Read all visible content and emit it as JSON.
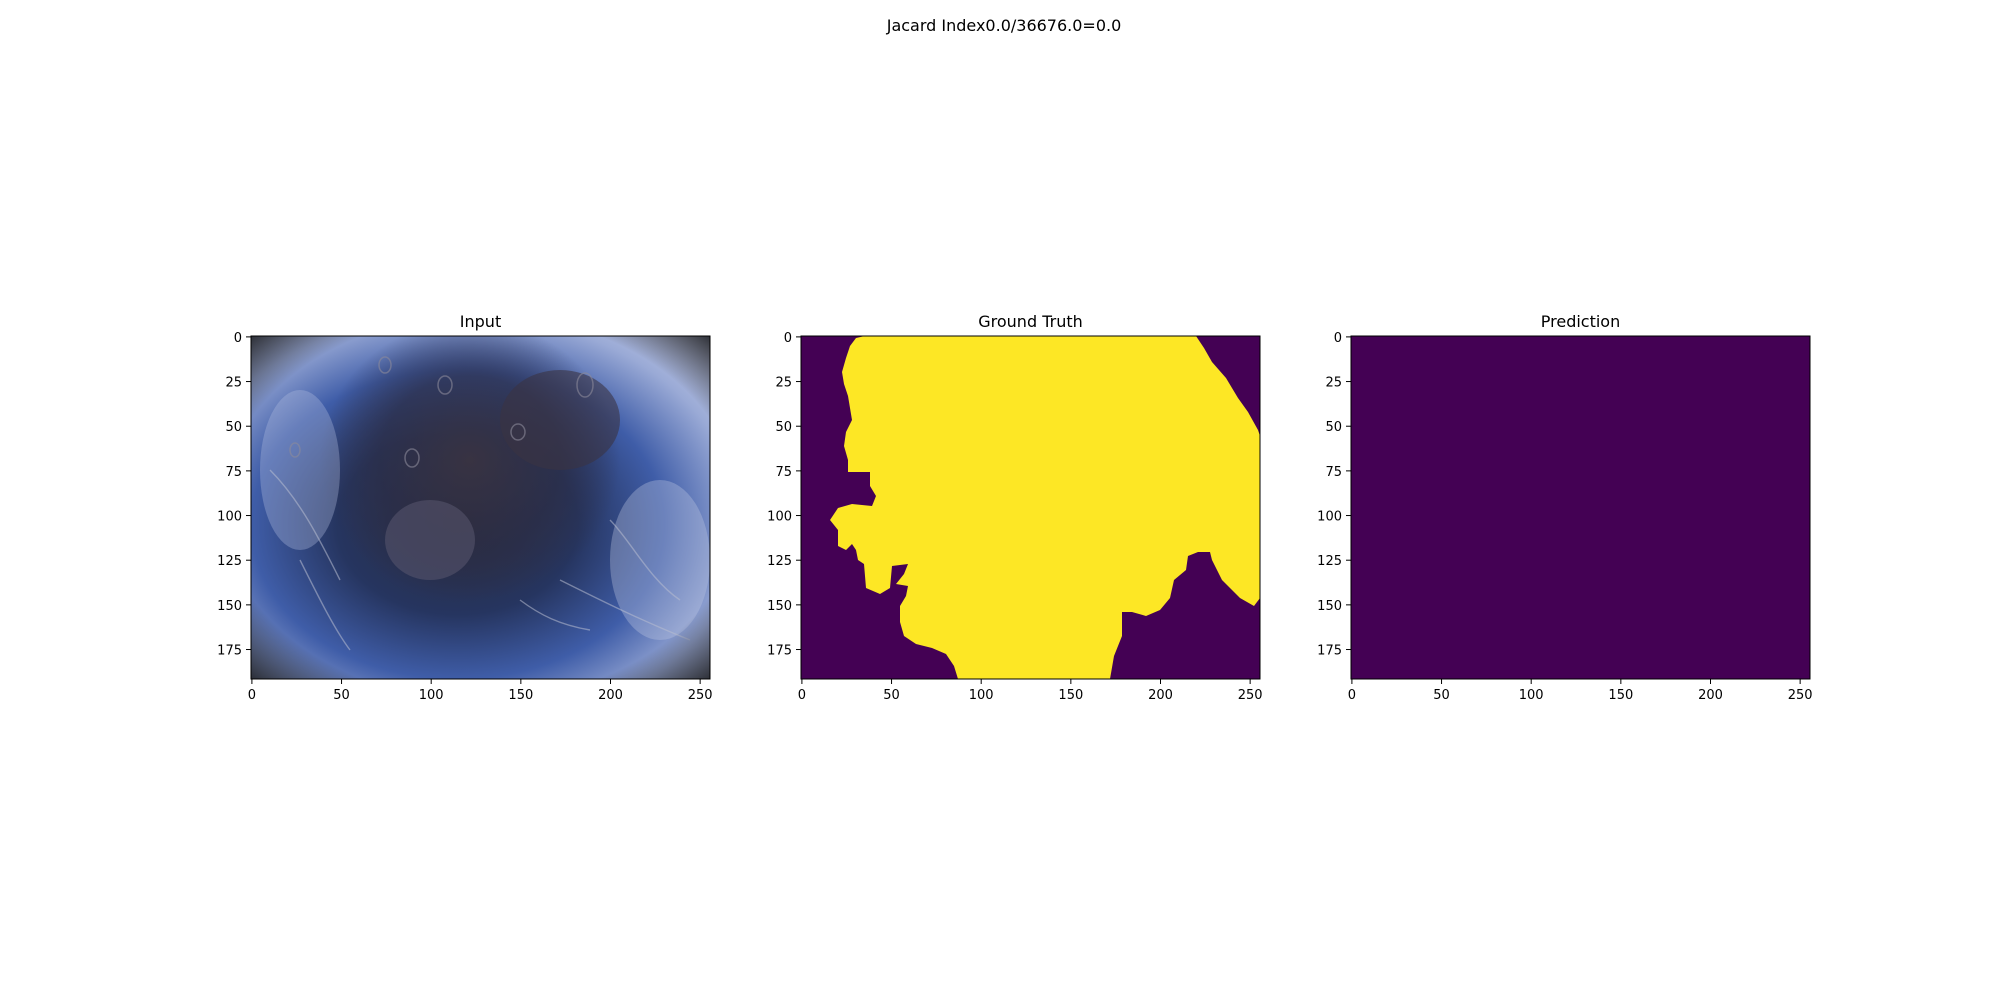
{
  "figure": {
    "suptitle": "Jacard Index0.0/36676.0=0.0"
  },
  "panels": [
    {
      "title": "Input",
      "kind": "photo",
      "x_ticks": [
        "0",
        "50",
        "100",
        "150",
        "200",
        "250"
      ],
      "y_ticks": [
        "0",
        "25",
        "50",
        "75",
        "100",
        "125",
        "150",
        "175"
      ]
    },
    {
      "title": "Ground Truth",
      "kind": "mask",
      "x_ticks": [
        "0",
        "50",
        "100",
        "150",
        "200",
        "250"
      ],
      "y_ticks": [
        "0",
        "25",
        "50",
        "75",
        "100",
        "125",
        "150",
        "175"
      ]
    },
    {
      "title": "Prediction",
      "kind": "empty-mask",
      "x_ticks": [
        "0",
        "50",
        "100",
        "150",
        "200",
        "250"
      ],
      "y_ticks": [
        "0",
        "25",
        "50",
        "75",
        "100",
        "125",
        "150",
        "175"
      ]
    }
  ],
  "image_extent": {
    "width": 256,
    "height": 192
  },
  "colors": {
    "mask_background": "#440154",
    "mask_foreground": "#fde725",
    "axis": "#000000"
  }
}
